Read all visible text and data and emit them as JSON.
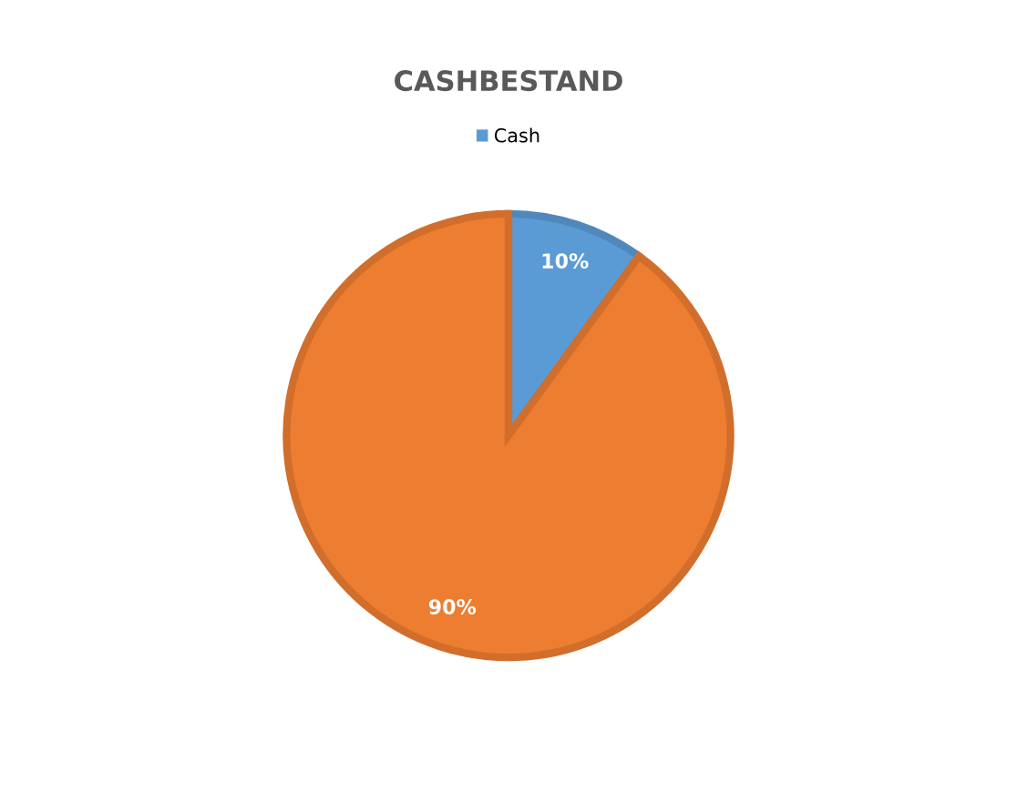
{
  "chart_data": {
    "type": "pie",
    "title": "CASHBESTAND",
    "categories": [
      "Cash",
      null
    ],
    "values": [
      10,
      90
    ],
    "colors": [
      "#5b9bd5",
      "#ed7d31"
    ],
    "value_labels": [
      "10%",
      "90%"
    ],
    "legend": "top"
  }
}
